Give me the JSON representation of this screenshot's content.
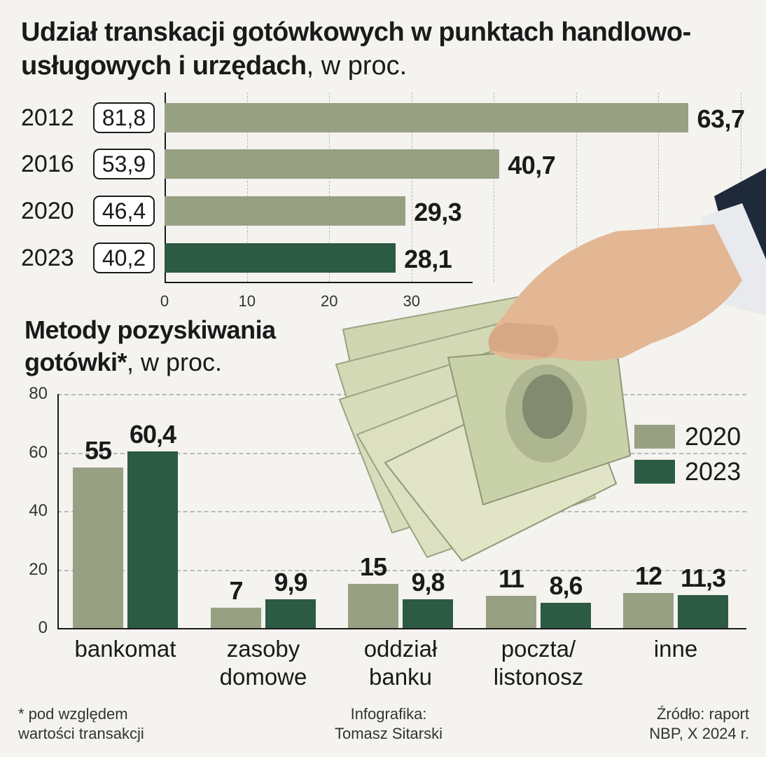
{
  "colors": {
    "light_bar": "#98a083",
    "dark_bar": "#2c5a42",
    "background": "#f4f3ef",
    "banknote": "#d7dbb9"
  },
  "chart_data": [
    {
      "type": "bar",
      "orientation": "horizontal",
      "title_bold": "Udział transkacji gotówkowych w punktach handlowo-usługowych i urzędach",
      "title_suffix": ", w proc.",
      "categories": [
        "2012",
        "2016",
        "2020",
        "2023"
      ],
      "values": [
        63.7,
        40.7,
        29.3,
        28.1
      ],
      "value_labels": [
        "63,7",
        "40,7",
        "29,3",
        "28,1"
      ],
      "badge_values": [
        81.8,
        53.9,
        46.4,
        40.2
      ],
      "badge_labels": [
        "81,8",
        "53,9",
        "46,4",
        "40,2"
      ],
      "highlight": [
        false,
        false,
        false,
        true
      ],
      "x_ticks": [
        "0",
        "10",
        "20",
        "30"
      ],
      "xlim": [
        0,
        65
      ],
      "grid": true
    },
    {
      "type": "bar",
      "orientation": "vertical",
      "title_bold": "Metody pozyskiwania gotówki*",
      "title_suffix": ", w proc.",
      "categories": [
        "bankomat",
        "zasoby\ndomowe",
        "oddział\nbanku",
        "poczta/\nlistonosz",
        "inne"
      ],
      "category_lines": [
        [
          "bankomat"
        ],
        [
          "zasoby",
          "domowe"
        ],
        [
          "oddział",
          "banku"
        ],
        [
          "poczta/",
          "listonosz"
        ],
        [
          "inne"
        ]
      ],
      "series": [
        {
          "name": "2020",
          "values": [
            55,
            7,
            15,
            11,
            12
          ],
          "labels": [
            "55",
            "7",
            "15",
            "11",
            "12"
          ]
        },
        {
          "name": "2023",
          "values": [
            60.4,
            9.9,
            9.8,
            8.6,
            11.3
          ],
          "labels": [
            "60,4",
            "9,9",
            "9,8",
            "8,6",
            "11,3"
          ]
        }
      ],
      "y_ticks": [
        "80",
        "60",
        "40",
        "20",
        "0"
      ],
      "ylim": [
        0,
        80
      ],
      "legend_placement": "right",
      "grid": true
    }
  ],
  "footer": {
    "note_line1": "* pod względem",
    "note_line2": "wartości transakcji",
    "credit_line1": "Infografika:",
    "credit_line2": "Tomasz Sitarski",
    "source_line1": "Źródło: raport",
    "source_line2": "NBP, X 2024 r."
  }
}
